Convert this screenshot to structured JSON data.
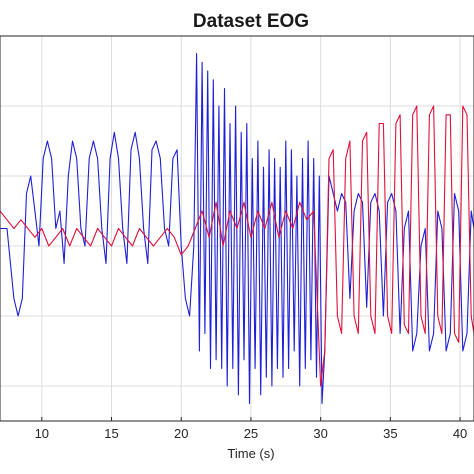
{
  "chart_data": {
    "type": "line",
    "title": "Dataset EOG",
    "xlabel": "Time (s)",
    "ylabel": "",
    "xlim": [
      7,
      41
    ],
    "ylim": [
      -1.2,
      1.0
    ],
    "xticks": [
      10,
      15,
      20,
      25,
      30,
      35,
      40
    ],
    "xtick_labels": [
      "10",
      "15",
      "20",
      "25",
      "30",
      "35",
      "40"
    ],
    "yticks": [
      -1.0,
      -0.6,
      -0.2,
      0.2,
      0.6,
      1.0
    ],
    "grid": true,
    "legend": "none",
    "series": [
      {
        "color": "#1f1fd6",
        "x": [
          7.0,
          7.5,
          8.0,
          8.3,
          8.6,
          8.9,
          9.2,
          9.5,
          9.8,
          10.1,
          10.4,
          10.7,
          11.0,
          11.3,
          11.6,
          11.9,
          12.2,
          12.5,
          12.8,
          13.1,
          13.4,
          13.7,
          14.0,
          14.3,
          14.6,
          14.9,
          15.2,
          15.5,
          15.8,
          16.1,
          16.4,
          16.7,
          17.0,
          17.3,
          17.6,
          17.9,
          18.2,
          18.5,
          18.8,
          19.1,
          19.4,
          19.7,
          20.0,
          20.3,
          20.6,
          20.9,
          21.1,
          21.3,
          21.5,
          21.7,
          21.9,
          22.1,
          22.3,
          22.5,
          22.7,
          22.9,
          23.1,
          23.3,
          23.5,
          23.7,
          23.9,
          24.1,
          24.3,
          24.5,
          24.7,
          24.9,
          25.1,
          25.3,
          25.5,
          25.7,
          25.9,
          26.1,
          26.3,
          26.5,
          26.7,
          26.9,
          27.1,
          27.3,
          27.5,
          27.7,
          27.9,
          28.1,
          28.3,
          28.5,
          28.7,
          28.9,
          29.1,
          29.3,
          29.5,
          29.7,
          29.9,
          30.1,
          30.3,
          30.6,
          30.9,
          31.2,
          31.5,
          31.8,
          32.1,
          32.4,
          32.7,
          33.0,
          33.3,
          33.6,
          33.9,
          34.2,
          34.5,
          34.8,
          35.1,
          35.4,
          35.7,
          36.0,
          36.3,
          36.6,
          36.9,
          37.2,
          37.5,
          37.8,
          38.1,
          38.4,
          38.7,
          39.0,
          39.3,
          39.6,
          39.9,
          40.2,
          40.5,
          40.8,
          41.0
        ],
        "y": [
          -0.1,
          -0.1,
          -0.5,
          -0.6,
          -0.5,
          0.1,
          0.2,
          0.0,
          -0.2,
          0.3,
          0.4,
          0.3,
          -0.1,
          0.0,
          -0.3,
          0.2,
          0.4,
          0.3,
          -0.1,
          -0.2,
          0.3,
          0.4,
          0.3,
          -0.1,
          -0.3,
          0.3,
          0.45,
          0.3,
          -0.1,
          -0.3,
          0.35,
          0.45,
          0.3,
          -0.1,
          -0.3,
          0.35,
          0.4,
          0.3,
          -0.1,
          -0.2,
          0.3,
          0.35,
          -0.2,
          -0.5,
          -0.6,
          -0.2,
          0.9,
          -0.8,
          0.85,
          -0.7,
          0.8,
          -0.9,
          0.75,
          -0.85,
          0.6,
          -0.9,
          0.7,
          -1.0,
          0.5,
          -0.9,
          0.6,
          -1.05,
          0.45,
          -0.85,
          0.5,
          -1.1,
          0.3,
          -0.9,
          0.4,
          -1.05,
          0.25,
          -0.95,
          0.35,
          -1.0,
          0.3,
          -0.9,
          0.25,
          -0.95,
          0.4,
          -0.9,
          0.35,
          -0.8,
          0.2,
          -1.0,
          0.3,
          -0.9,
          0.4,
          -0.85,
          0.3,
          -0.95,
          0.2,
          -1.1,
          -0.8,
          0.2,
          0.1,
          0.0,
          0.1,
          0.05,
          -0.5,
          0.0,
          0.1,
          0.05,
          -0.55,
          0.05,
          0.1,
          0.0,
          -0.6,
          0.05,
          0.1,
          0.0,
          -0.7,
          -0.1,
          0.0,
          -0.8,
          -0.7,
          -0.2,
          -0.1,
          -0.8,
          -0.7,
          0.0,
          -0.1,
          -0.8,
          -0.7,
          0.1,
          0.0,
          -0.8,
          -0.7,
          0.0,
          -0.1
        ]
      },
      {
        "color": "#e0103a",
        "x": [
          7.0,
          7.5,
          8.0,
          8.5,
          9.0,
          9.5,
          10.0,
          10.5,
          11.0,
          11.5,
          12.0,
          12.5,
          13.0,
          13.5,
          14.0,
          14.5,
          15.0,
          15.5,
          16.0,
          16.5,
          17.0,
          17.5,
          18.0,
          18.5,
          19.0,
          19.5,
          20.0,
          20.5,
          21.0,
          21.5,
          22.0,
          22.5,
          23.0,
          23.5,
          24.0,
          24.5,
          25.0,
          25.5,
          26.0,
          26.5,
          27.0,
          27.5,
          28.0,
          28.5,
          29.0,
          29.5,
          30.0,
          30.3,
          30.6,
          30.9,
          31.2,
          31.5,
          31.8,
          32.1,
          32.4,
          32.7,
          33.0,
          33.3,
          33.6,
          33.9,
          34.2,
          34.5,
          34.8,
          35.1,
          35.4,
          35.7,
          36.0,
          36.3,
          36.6,
          36.9,
          37.2,
          37.5,
          37.8,
          38.1,
          38.4,
          38.7,
          39.0,
          39.3,
          39.6,
          39.9,
          40.2,
          40.5,
          40.8,
          41.0
        ],
        "y": [
          0.0,
          -0.05,
          -0.1,
          -0.05,
          -0.1,
          -0.15,
          -0.1,
          -0.2,
          -0.15,
          -0.1,
          -0.2,
          -0.1,
          -0.15,
          -0.2,
          -0.1,
          -0.15,
          -0.2,
          -0.1,
          -0.15,
          -0.2,
          -0.1,
          -0.15,
          -0.2,
          -0.15,
          -0.1,
          -0.15,
          -0.25,
          -0.2,
          -0.1,
          0.0,
          -0.15,
          0.05,
          -0.2,
          0.0,
          -0.1,
          0.05,
          -0.15,
          0.0,
          -0.1,
          0.05,
          -0.15,
          0.0,
          -0.1,
          0.05,
          -0.05,
          0.0,
          -1.0,
          -0.8,
          0.3,
          0.35,
          -0.6,
          -0.7,
          0.3,
          0.4,
          -0.6,
          -0.7,
          0.4,
          0.45,
          -0.6,
          -0.7,
          0.5,
          0.5,
          -0.6,
          -0.7,
          0.5,
          0.55,
          -0.65,
          -0.7,
          0.55,
          0.6,
          -0.6,
          -0.7,
          0.55,
          0.6,
          -0.6,
          -0.7,
          0.55,
          0.55,
          -0.7,
          -0.75,
          0.6,
          0.55,
          -0.6,
          -0.7
        ]
      }
    ]
  }
}
